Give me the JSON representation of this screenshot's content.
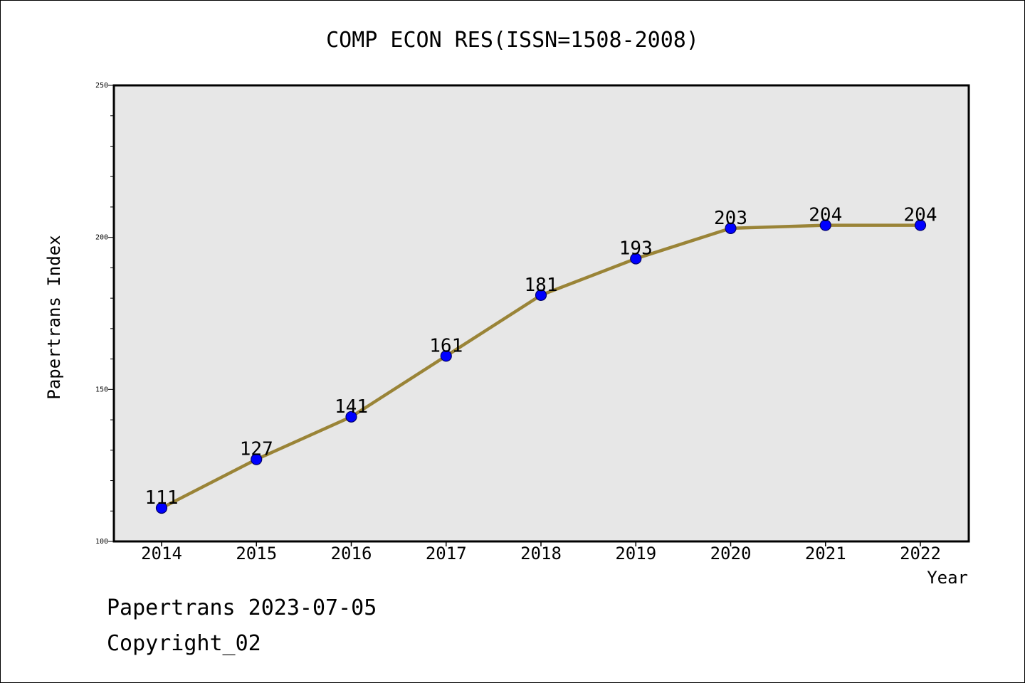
{
  "chart_data": {
    "type": "line",
    "title": "COMP ECON RES(ISSN=1508-2008)",
    "xlabel": "Year",
    "ylabel": "Papertrans Index",
    "categories": [
      "2014",
      "2015",
      "2016",
      "2017",
      "2018",
      "2019",
      "2020",
      "2021",
      "2022"
    ],
    "series": [
      {
        "values": [
          111,
          127,
          141,
          161,
          181,
          193,
          203,
          204,
          204
        ]
      }
    ],
    "data_labels": [
      "111",
      "127",
      "141",
      "161",
      "181",
      "193",
      "203",
      "204",
      "204"
    ],
    "ylim": [
      100,
      250
    ],
    "yticks": [
      "100",
      "150",
      "200",
      "250"
    ],
    "grid": false,
    "legend": "none",
    "colors": {
      "line": "#9a8437",
      "marker": "#0000ff",
      "marker_edge": "#000066",
      "plot_bg": "#e7e7e7"
    }
  },
  "footer": {
    "line1": "Papertrans 2023-07-05",
    "line2": "Copyright_02"
  }
}
